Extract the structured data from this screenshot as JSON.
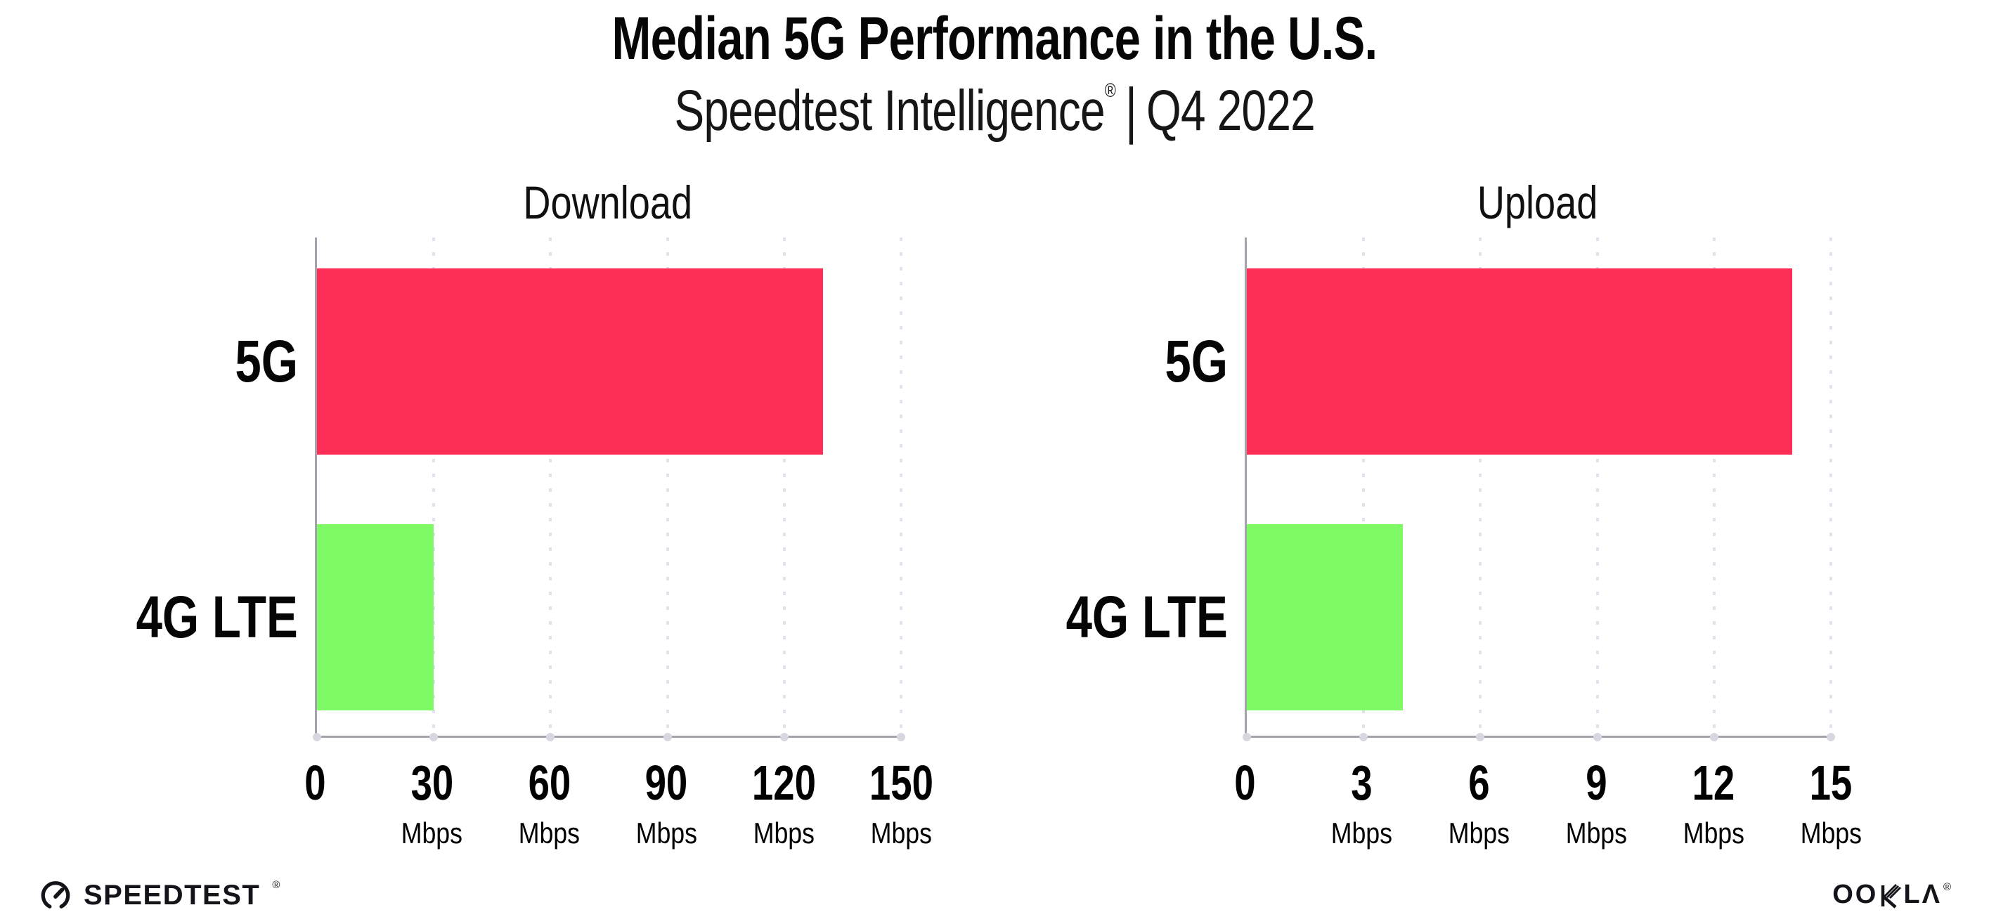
{
  "page": {
    "background": "#ffffff"
  },
  "header": {
    "title": "Median 5G Performance in the U.S.",
    "subtitle": {
      "brand": "Speedtest Intelligence",
      "registered_mark": "®",
      "separator": "|",
      "period": "Q4 2022"
    }
  },
  "chart_data": [
    {
      "type": "bar",
      "orientation": "horizontal",
      "title": "Download",
      "categories": [
        "5G",
        "4G LTE"
      ],
      "values": [
        130,
        30
      ],
      "unit": "Mbps",
      "xlim": [
        0,
        150
      ],
      "xticks": [
        0,
        30,
        60,
        90,
        120,
        150
      ],
      "tick_unit_label": "Mbps",
      "bar_colors": [
        "#FF2E56",
        "#7EFA67"
      ],
      "grid": "vertical-dotted",
      "legend": "none"
    },
    {
      "type": "bar",
      "orientation": "horizontal",
      "title": "Upload",
      "categories": [
        "5G",
        "4G LTE"
      ],
      "values": [
        14,
        4
      ],
      "unit": "Mbps",
      "xlim": [
        0,
        15
      ],
      "xticks": [
        0,
        3,
        6,
        9,
        12,
        15
      ],
      "tick_unit_label": "Mbps",
      "bar_colors": [
        "#FF2E56",
        "#7EFA67"
      ],
      "grid": "vertical-dotted",
      "legend": "none"
    }
  ],
  "colors": {
    "bar_5g": "#FF2E56",
    "bar_4g_lte": "#7EFA67",
    "axis_line": "#A3A3AC",
    "gridline": "#E2E2EC",
    "text": "#0D0D0D"
  },
  "footer": {
    "speedtest": {
      "wordmark": "SPEEDTEST",
      "registered_mark": "®"
    },
    "ookla": {
      "part_oo": "OO",
      "part_l": "L",
      "part_a": "Λ",
      "registered_mark": "®"
    }
  }
}
